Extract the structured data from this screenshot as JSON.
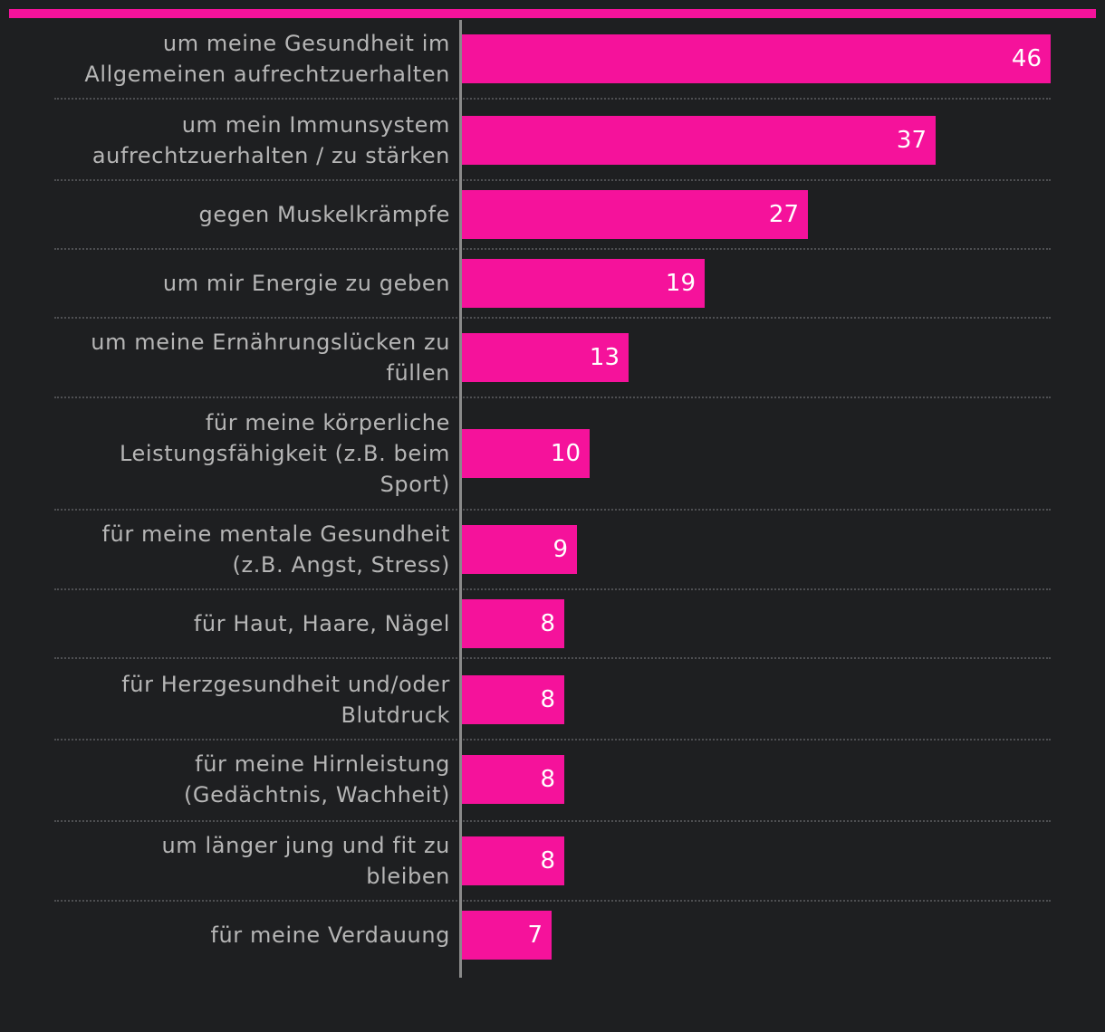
{
  "colors": {
    "background": "#1e1f21",
    "bar": "#f5129b",
    "label_text": "#b6b6b6",
    "value_text": "#ffffff",
    "axis": "#8a8a8a"
  },
  "chart_data": {
    "type": "bar",
    "orientation": "horizontal",
    "categories": [
      "um meine Gesundheit im Allgemeinen aufrechtzuerhalten",
      "um mein Immunsystem aufrechtzuerhalten / zu stärken",
      "gegen Muskelkrämpfe",
      "um mir Energie zu geben",
      "um meine Ernährungslücken zu füllen",
      "für meine körperliche Leistungsfähigkeit (z.B. beim Sport)",
      "für meine mentale Gesundheit (z.B. Angst, Stress)",
      "für Haut, Haare, Nägel",
      "für Herzgesundheit und/oder Blutdruck",
      "für meine Hirnleistung (Gedächtnis, Wachheit)",
      "um länger jung und fit zu bleiben",
      "für meine Verdauung"
    ],
    "values": [
      46,
      37,
      27,
      19,
      13,
      10,
      9,
      8,
      8,
      8,
      8,
      7
    ],
    "xlim": [
      0,
      46
    ],
    "grid": false,
    "data_labels": true
  }
}
